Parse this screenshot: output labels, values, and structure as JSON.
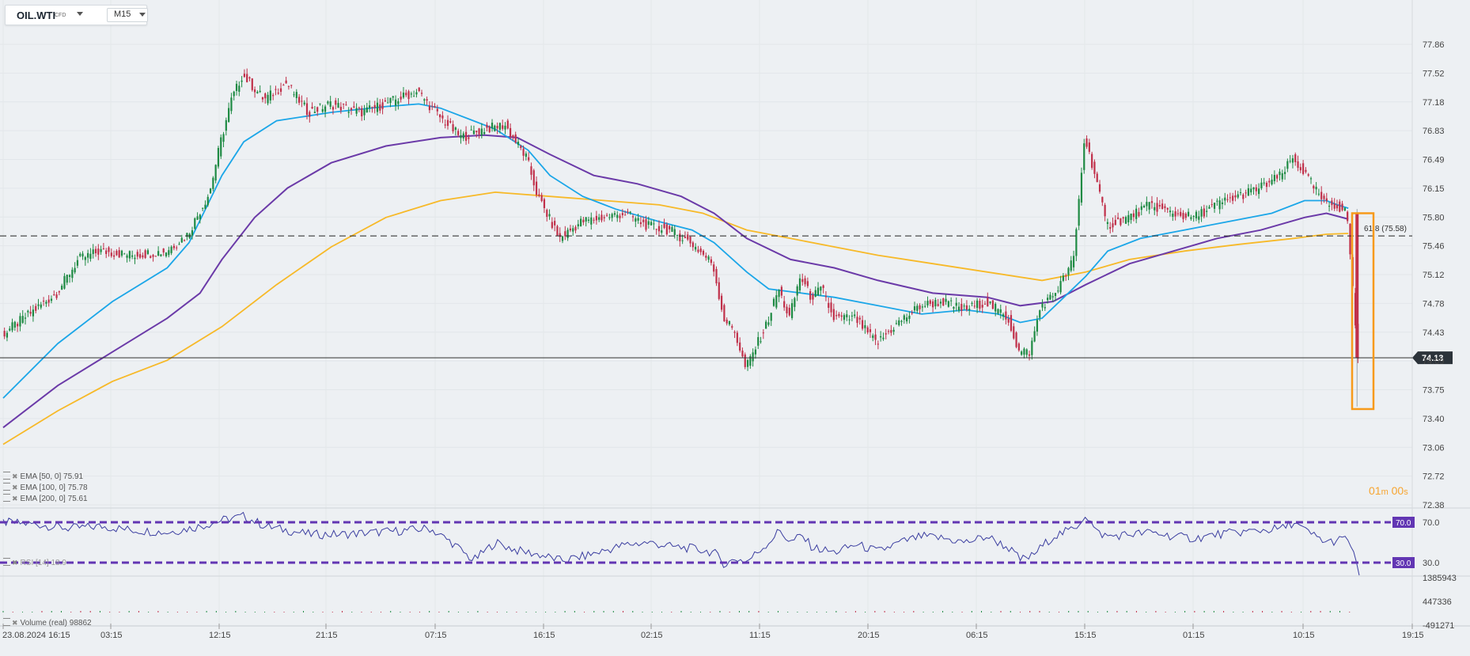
{
  "toolbar": {
    "symbol": "OIL.WTI",
    "symbol_type": "CFD",
    "timeframe": "M15"
  },
  "indicators": [
    {
      "name": "EMA",
      "params": "[50, 0]",
      "value": "75.91",
      "color": "#1ba6e8"
    },
    {
      "name": "EMA",
      "params": "[100, 0]",
      "value": "75.78",
      "color": "#6b3aa8"
    },
    {
      "name": "EMA",
      "params": "[200, 0]",
      "value": "75.61",
      "color": "#f7b928"
    }
  ],
  "rsi_label": "RSI [14] 18.9",
  "volume_label": "Volume  (real)  98862",
  "timer": {
    "minutes": "01",
    "m_unit": "m",
    "seconds": "00",
    "s_unit": "s"
  },
  "fib_label": "61.8 (75.58)",
  "colors": {
    "up": "#1e8a43",
    "down": "#c0304a",
    "rsi_line": "#3b3ea0",
    "rsi_bands": "#6236b3",
    "price_badge": "#2c333a",
    "box": "#f79a1a"
  },
  "chart_data": {
    "type": "candlestick",
    "symbol": "OIL.WTI",
    "ylim": [
      72.38,
      78.05
    ],
    "y_ticks": [
      "77.86",
      "77.52",
      "77.18",
      "76.83",
      "76.49",
      "76.15",
      "75.80",
      "75.46",
      "75.12",
      "74.78",
      "74.43",
      "74.09",
      "73.75",
      "73.40",
      "73.06",
      "72.72",
      "72.38"
    ],
    "x_ticks": [
      "23.08.2024  16:15",
      "03:15",
      "12:15",
      "21:15",
      "07:15",
      "16:15",
      "02:15",
      "11:15",
      "20:15",
      "06:15",
      "15:15",
      "01:15",
      "10:15",
      "19:15"
    ],
    "current_price": "74.13",
    "current_price_value": 74.13,
    "fib_level_value": 75.58,
    "price_path": [
      [
        0,
        74.4
      ],
      [
        2,
        74.6
      ],
      [
        5,
        74.9
      ],
      [
        7,
        75.3
      ],
      [
        9,
        75.4
      ],
      [
        12,
        75.35
      ],
      [
        15,
        75.4
      ],
      [
        17,
        75.6
      ],
      [
        19,
        76.1
      ],
      [
        20,
        76.7
      ],
      [
        21,
        77.2
      ],
      [
        22,
        77.5
      ],
      [
        24,
        77.2
      ],
      [
        26,
        77.4
      ],
      [
        28,
        77.05
      ],
      [
        30,
        77.15
      ],
      [
        33,
        77.05
      ],
      [
        36,
        77.2
      ],
      [
        38,
        77.3
      ],
      [
        40,
        77.0
      ],
      [
        42,
        76.75
      ],
      [
        44,
        76.85
      ],
      [
        46,
        76.9
      ],
      [
        48,
        76.5
      ],
      [
        49,
        76.05
      ],
      [
        51,
        75.55
      ],
      [
        53,
        75.75
      ],
      [
        55,
        75.8
      ],
      [
        57,
        75.85
      ],
      [
        59,
        75.7
      ],
      [
        61,
        75.65
      ],
      [
        63,
        75.5
      ],
      [
        65,
        75.25
      ],
      [
        66,
        74.6
      ],
      [
        67,
        74.45
      ],
      [
        68,
        74.0
      ],
      [
        70,
        74.55
      ],
      [
        71,
        74.95
      ],
      [
        72,
        74.6
      ],
      [
        73,
        75.1
      ],
      [
        74,
        74.85
      ],
      [
        75,
        74.95
      ],
      [
        76,
        74.6
      ],
      [
        78,
        74.6
      ],
      [
        80,
        74.3
      ],
      [
        82,
        74.55
      ],
      [
        84,
        74.75
      ],
      [
        86,
        74.8
      ],
      [
        88,
        74.7
      ],
      [
        90,
        74.8
      ],
      [
        92,
        74.6
      ],
      [
        93,
        74.2
      ],
      [
        94,
        74.2
      ],
      [
        95,
        74.75
      ],
      [
        96,
        74.85
      ],
      [
        97,
        75.05
      ],
      [
        98,
        75.3
      ],
      [
        99,
        76.75
      ],
      [
        100,
        76.3
      ],
      [
        101,
        75.7
      ],
      [
        103,
        75.8
      ],
      [
        105,
        75.95
      ],
      [
        107,
        75.85
      ],
      [
        109,
        75.8
      ],
      [
        111,
        75.95
      ],
      [
        113,
        76.05
      ],
      [
        115,
        76.15
      ],
      [
        117,
        76.3
      ],
      [
        118,
        76.5
      ],
      [
        119,
        76.35
      ],
      [
        120,
        76.15
      ],
      [
        121,
        75.95
      ],
      [
        122,
        75.95
      ],
      [
        123,
        75.85
      ],
      [
        124,
        74.13
      ]
    ],
    "ema_50_path": [
      [
        0,
        73.65
      ],
      [
        5,
        74.3
      ],
      [
        10,
        74.8
      ],
      [
        15,
        75.2
      ],
      [
        17,
        75.5
      ],
      [
        20,
        76.3
      ],
      [
        22,
        76.7
      ],
      [
        25,
        76.95
      ],
      [
        30,
        77.05
      ],
      [
        35,
        77.12
      ],
      [
        38,
        77.15
      ],
      [
        40,
        77.1
      ],
      [
        43,
        76.95
      ],
      [
        45,
        76.85
      ],
      [
        48,
        76.6
      ],
      [
        50,
        76.3
      ],
      [
        53,
        76.05
      ],
      [
        56,
        75.9
      ],
      [
        60,
        75.75
      ],
      [
        63,
        75.65
      ],
      [
        65,
        75.5
      ],
      [
        68,
        75.15
      ],
      [
        70,
        74.95
      ],
      [
        73,
        74.9
      ],
      [
        76,
        74.85
      ],
      [
        80,
        74.75
      ],
      [
        84,
        74.65
      ],
      [
        88,
        74.7
      ],
      [
        91,
        74.65
      ],
      [
        93,
        74.55
      ],
      [
        95,
        74.6
      ],
      [
        97,
        74.85
      ],
      [
        99,
        75.1
      ],
      [
        101,
        75.4
      ],
      [
        104,
        75.55
      ],
      [
        108,
        75.65
      ],
      [
        112,
        75.75
      ],
      [
        116,
        75.85
      ],
      [
        119,
        76.0
      ],
      [
        121,
        76.0
      ],
      [
        122,
        75.95
      ],
      [
        123,
        75.91
      ]
    ],
    "ema_100_path": [
      [
        0,
        73.3
      ],
      [
        5,
        73.8
      ],
      [
        10,
        74.2
      ],
      [
        15,
        74.6
      ],
      [
        18,
        74.9
      ],
      [
        20,
        75.3
      ],
      [
        23,
        75.8
      ],
      [
        26,
        76.15
      ],
      [
        30,
        76.45
      ],
      [
        35,
        76.65
      ],
      [
        40,
        76.75
      ],
      [
        44,
        76.78
      ],
      [
        47,
        76.75
      ],
      [
        50,
        76.55
      ],
      [
        54,
        76.3
      ],
      [
        58,
        76.2
      ],
      [
        62,
        76.05
      ],
      [
        65,
        75.85
      ],
      [
        68,
        75.55
      ],
      [
        72,
        75.3
      ],
      [
        76,
        75.2
      ],
      [
        80,
        75.05
      ],
      [
        85,
        74.9
      ],
      [
        90,
        74.85
      ],
      [
        93,
        74.75
      ],
      [
        96,
        74.8
      ],
      [
        99,
        75.0
      ],
      [
        103,
        75.25
      ],
      [
        107,
        75.4
      ],
      [
        111,
        75.55
      ],
      [
        115,
        75.65
      ],
      [
        119,
        75.8
      ],
      [
        121,
        75.85
      ],
      [
        123,
        75.78
      ]
    ],
    "ema_200_path": [
      [
        0,
        73.1
      ],
      [
        5,
        73.5
      ],
      [
        10,
        73.85
      ],
      [
        15,
        74.1
      ],
      [
        20,
        74.5
      ],
      [
        25,
        75.0
      ],
      [
        30,
        75.45
      ],
      [
        35,
        75.8
      ],
      [
        40,
        76.0
      ],
      [
        45,
        76.1
      ],
      [
        50,
        76.05
      ],
      [
        55,
        76.0
      ],
      [
        60,
        75.95
      ],
      [
        64,
        75.85
      ],
      [
        68,
        75.65
      ],
      [
        72,
        75.55
      ],
      [
        76,
        75.45
      ],
      [
        80,
        75.35
      ],
      [
        85,
        75.25
      ],
      [
        90,
        75.15
      ],
      [
        95,
        75.05
      ],
      [
        99,
        75.15
      ],
      [
        103,
        75.3
      ],
      [
        108,
        75.4
      ],
      [
        113,
        75.48
      ],
      [
        118,
        75.55
      ],
      [
        121,
        75.6
      ],
      [
        123,
        75.61
      ]
    ],
    "rsi": {
      "ylim": [
        0,
        100
      ],
      "overbought": "70.0",
      "oversold": "30.0",
      "axis_ticks": [
        "70.0",
        "30.0"
      ],
      "path": [
        [
          0,
          70
        ],
        [
          3,
          68
        ],
        [
          6,
          64
        ],
        [
          9,
          66
        ],
        [
          12,
          62
        ],
        [
          15,
          60
        ],
        [
          18,
          66
        ],
        [
          20,
          72
        ],
        [
          22,
          76
        ],
        [
          24,
          66
        ],
        [
          26,
          62
        ],
        [
          28,
          58
        ],
        [
          31,
          58
        ],
        [
          34,
          60
        ],
        [
          37,
          62
        ],
        [
          39,
          64
        ],
        [
          41,
          50
        ],
        [
          43,
          32
        ],
        [
          45,
          50
        ],
        [
          47,
          42
        ],
        [
          49,
          38
        ],
        [
          51,
          32
        ],
        [
          53,
          36
        ],
        [
          55,
          42
        ],
        [
          57,
          48
        ],
        [
          59,
          50
        ],
        [
          61,
          46
        ],
        [
          63,
          44
        ],
        [
          65,
          40
        ],
        [
          66,
          28
        ],
        [
          67,
          34
        ],
        [
          68,
          31
        ],
        [
          70,
          50
        ],
        [
          71,
          62
        ],
        [
          72,
          50
        ],
        [
          73,
          57
        ],
        [
          74,
          45
        ],
        [
          76,
          40
        ],
        [
          78,
          48
        ],
        [
          80,
          41
        ],
        [
          82,
          50
        ],
        [
          84,
          56
        ],
        [
          86,
          54
        ],
        [
          88,
          50
        ],
        [
          90,
          56
        ],
        [
          92,
          44
        ],
        [
          93,
          33
        ],
        [
          94,
          36
        ],
        [
          96,
          56
        ],
        [
          98,
          64
        ],
        [
          99,
          78
        ],
        [
          100,
          60
        ],
        [
          101,
          56
        ],
        [
          103,
          58
        ],
        [
          105,
          60
        ],
        [
          107,
          56
        ],
        [
          109,
          54
        ],
        [
          111,
          58
        ],
        [
          113,
          60
        ],
        [
          115,
          62
        ],
        [
          117,
          64
        ],
        [
          118,
          70
        ],
        [
          119,
          62
        ],
        [
          120,
          56
        ],
        [
          121,
          50
        ],
        [
          122,
          52
        ],
        [
          123,
          54
        ],
        [
          124,
          19
        ]
      ]
    },
    "volume": {
      "ticks": [
        "1385943",
        "447336",
        "-491271"
      ]
    }
  }
}
